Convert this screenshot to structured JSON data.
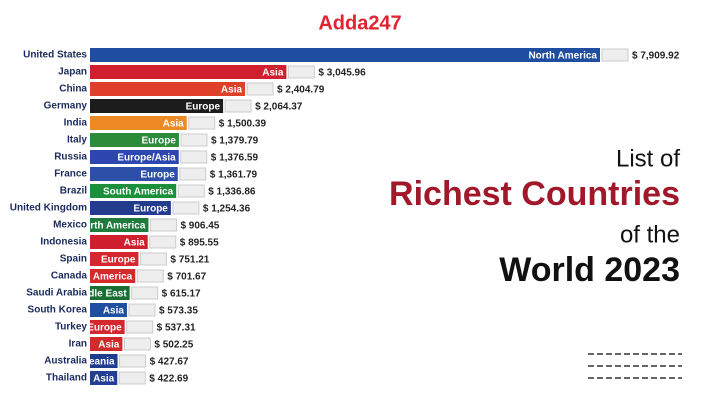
{
  "logo": "Adda247",
  "headline": [
    "List of",
    "Richest Countries",
    "of the",
    "World 2023"
  ],
  "chart_data": {
    "type": "bar",
    "orientation": "horizontal",
    "categories": [
      "United States",
      "Japan",
      "China",
      "Germany",
      "India",
      "Italy",
      "Russia",
      "France",
      "Brazil",
      "United Kingdom",
      "Mexico",
      "Indonesia",
      "Spain",
      "Canada",
      "Saudi Arabia",
      "South Korea",
      "Turkey",
      "Iran",
      "Australia",
      "Thailand"
    ],
    "regions": [
      "North America",
      "Asia",
      "Asia",
      "Europe",
      "Asia",
      "Europe",
      "Europe/Asia",
      "Europe",
      "South America",
      "Europe",
      "rth America",
      "Asia",
      "Europe",
      "America",
      "dle East",
      "Asia",
      "Europe",
      "Asia",
      "eania",
      "Asia"
    ],
    "values": [
      7909.92,
      3045.96,
      2404.79,
      2064.37,
      1500.39,
      1379.79,
      1376.59,
      1361.79,
      1336.86,
      1254.36,
      906.45,
      895.55,
      751.21,
      701.67,
      615.17,
      573.35,
      537.31,
      502.25,
      427.67,
      422.69
    ],
    "value_labels": [
      "$ 7,909.92",
      "$ 3,045.96",
      "$ 2,404.79",
      "$ 2,064.37",
      "$ 1,500.39",
      "$ 1,379.79",
      "$ 1,376.59",
      "$ 1,361.79",
      "$ 1,336.86",
      "$ 1,254.36",
      "$ 906.45",
      "$ 895.55",
      "$ 751.21",
      "$ 701.67",
      "$ 615.17",
      "$ 573.35",
      "$ 537.31",
      "$ 502.25",
      "$ 427.67",
      "$ 422.69"
    ],
    "colors": [
      "#1f4ea0",
      "#d0202f",
      "#e0402a",
      "#1c1c1c",
      "#ee8a24",
      "#2e8b3a",
      "#2d46b0",
      "#2d4fa8",
      "#1b8f3a",
      "#223b8c",
      "#1f7a3c",
      "#d0202f",
      "#d6262f",
      "#d42a2a",
      "#1a6e34",
      "#1f4fa0",
      "#d6262f",
      "#d02a2a",
      "#1f3d8f",
      "#223f92"
    ]
  }
}
